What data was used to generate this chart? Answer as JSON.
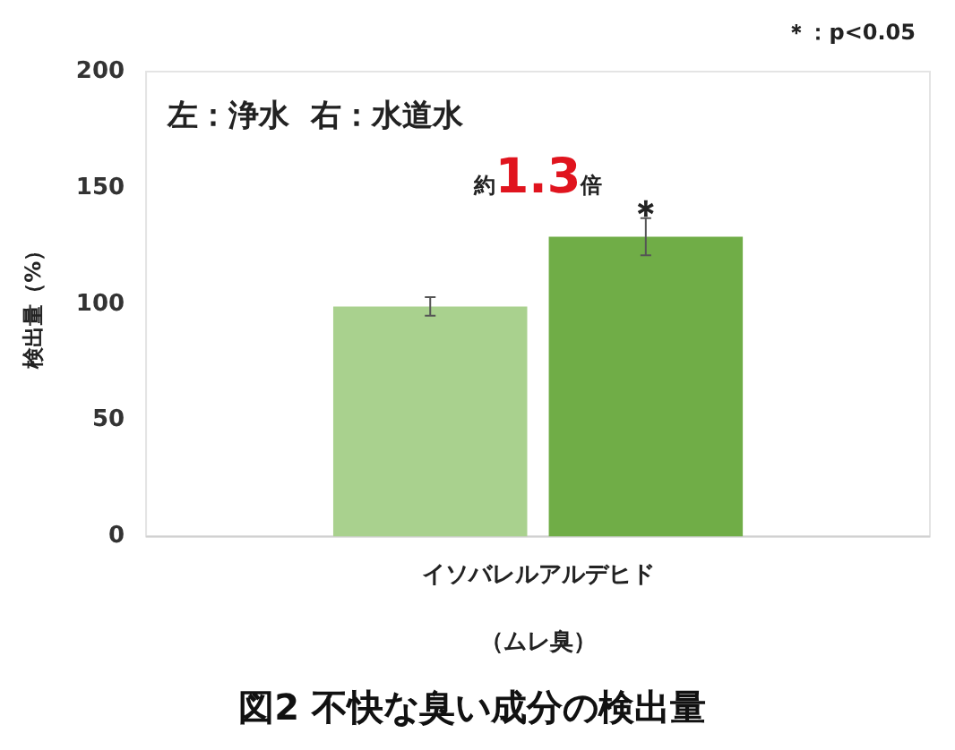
{
  "chart_data": {
    "type": "bar",
    "title": "図2 不快な臭い成分の検出量",
    "ylabel": "検出量（%）",
    "xlabel": "（ムレ臭）",
    "categories": [
      "イソバレルアルデヒド"
    ],
    "series": [
      {
        "color": "#a9d18e",
        "values": [
          99
        ],
        "errors": [
          4
        ]
      },
      {
        "color": "#70ad47",
        "values": [
          129
        ],
        "errors": [
          8
        ]
      }
    ],
    "ylim": [
      0,
      200
    ],
    "yticks": [
      0,
      50,
      100,
      150,
      200
    ],
    "grid": false,
    "legend": false,
    "annotations": [
      "＊：p<0.05",
      "左：浄水  右：水道水",
      "約1.3倍",
      "＊"
    ]
  }
}
